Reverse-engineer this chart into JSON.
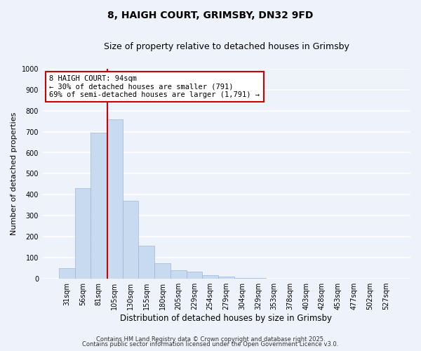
{
  "title": "8, HAIGH COURT, GRIMSBY, DN32 9FD",
  "subtitle": "Size of property relative to detached houses in Grimsby",
  "xlabel": "Distribution of detached houses by size in Grimsby",
  "ylabel": "Number of detached properties",
  "bar_labels": [
    "31sqm",
    "56sqm",
    "81sqm",
    "105sqm",
    "130sqm",
    "155sqm",
    "180sqm",
    "205sqm",
    "229sqm",
    "254sqm",
    "279sqm",
    "304sqm",
    "329sqm",
    "353sqm",
    "378sqm",
    "403sqm",
    "428sqm",
    "453sqm",
    "477sqm",
    "502sqm",
    "527sqm"
  ],
  "bar_values": [
    50,
    430,
    695,
    760,
    370,
    157,
    75,
    40,
    33,
    17,
    10,
    5,
    2,
    0,
    0,
    0,
    0,
    0,
    0,
    0,
    0
  ],
  "bar_color": "#c8daf0",
  "bar_edgecolor": "#9ab8d8",
  "vline_color": "#cc0000",
  "annotation_line1": "8 HAIGH COURT: 94sqm",
  "annotation_line2": "← 30% of detached houses are smaller (791)",
  "annotation_line3": "69% of semi-detached houses are larger (1,791) →",
  "annotation_box_color": "#ffffff",
  "annotation_box_edgecolor": "#cc0000",
  "ylim": [
    0,
    1000
  ],
  "yticks": [
    0,
    100,
    200,
    300,
    400,
    500,
    600,
    700,
    800,
    900,
    1000
  ],
  "background_color": "#eef2fb",
  "plot_bg_color": "#eef2fb",
  "grid_color": "#ffffff",
  "footer_line1": "Contains HM Land Registry data © Crown copyright and database right 2025.",
  "footer_line2": "Contains public sector information licensed under the Open Government Licence v3.0.",
  "title_fontsize": 10,
  "subtitle_fontsize": 9,
  "xlabel_fontsize": 8.5,
  "ylabel_fontsize": 8,
  "tick_fontsize": 7,
  "annotation_fontsize": 7.5,
  "footer_fontsize": 6
}
